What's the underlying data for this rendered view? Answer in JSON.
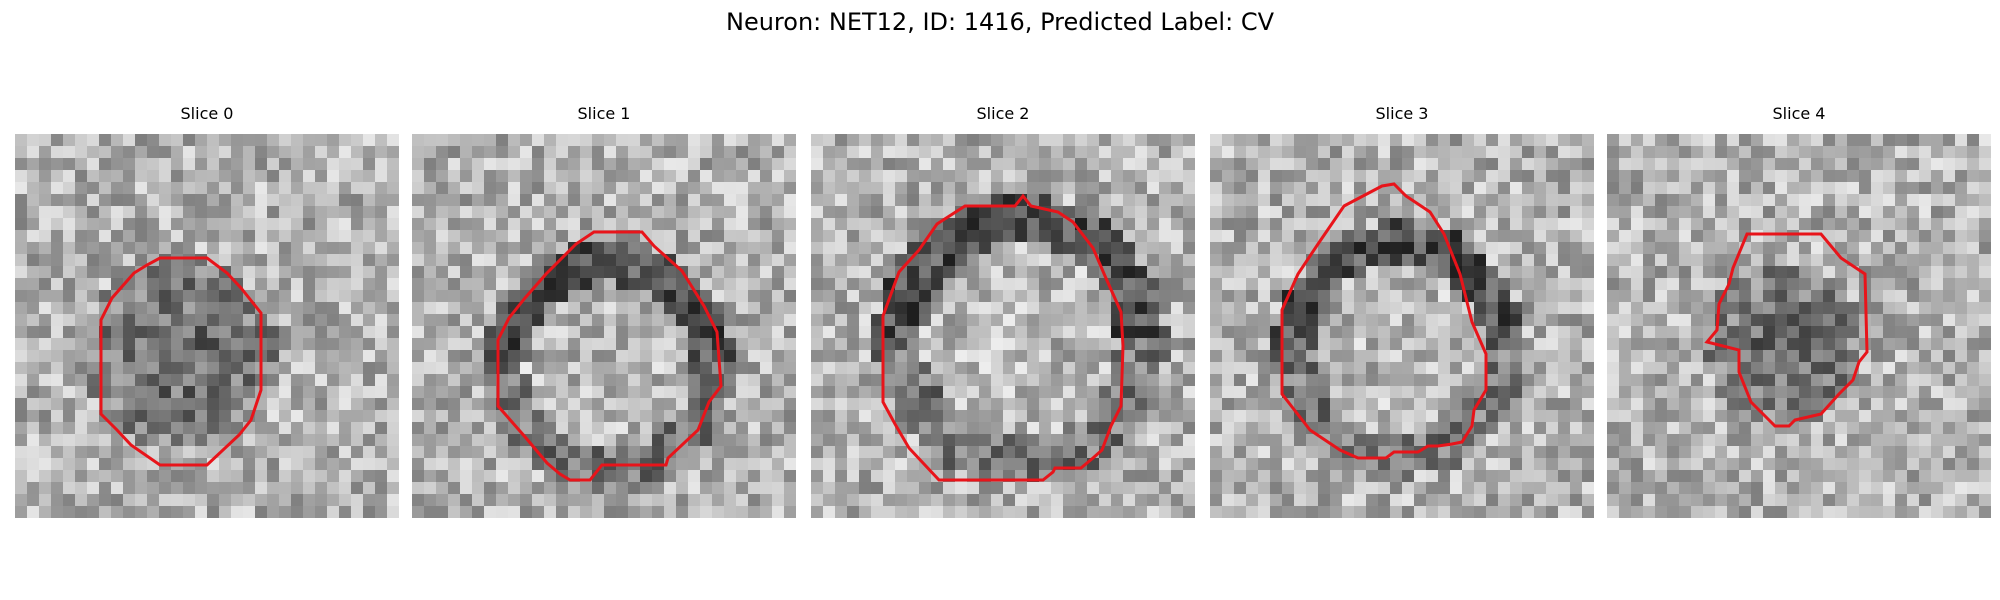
{
  "figure": {
    "title": "Neuron: NET12, ID: 1416, Predicted Label: CV"
  },
  "chart_data": {
    "type": "image-grid",
    "title": "Neuron: NET12, ID: 1416, Predicted Label: CV",
    "colormap": "gray",
    "contour_color": "#e8141a",
    "panels": [
      {
        "title": "Slice 0"
      },
      {
        "title": "Slice 1"
      },
      {
        "title": "Slice 2"
      },
      {
        "title": "Slice 3"
      },
      {
        "title": "Slice 4"
      }
    ]
  }
}
